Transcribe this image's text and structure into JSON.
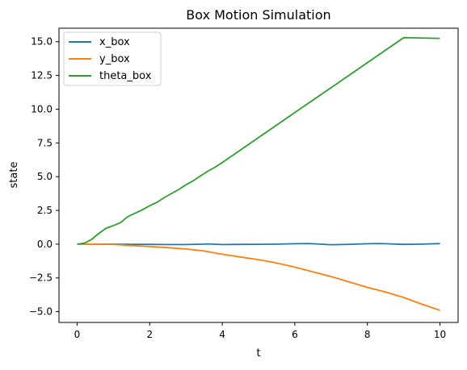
{
  "chart_data": {
    "type": "line",
    "title": "Box Motion Simulation",
    "xlabel": "t",
    "ylabel": "state",
    "xlim": [
      -0.5,
      10.5
    ],
    "ylim": [
      -5.8,
      16.0
    ],
    "xticks": [
      0,
      2,
      4,
      6,
      8,
      10
    ],
    "xtick_labels": [
      "0",
      "2",
      "4",
      "6",
      "8",
      "10"
    ],
    "yticks": [
      -5.0,
      -2.5,
      0.0,
      2.5,
      5.0,
      7.5,
      10.0,
      12.5,
      15.0
    ],
    "ytick_labels": [
      "−5.0",
      "−2.5",
      "0.0",
      "2.5",
      "5.0",
      "7.5",
      "10.0",
      "12.5",
      "15.0"
    ],
    "grid": false,
    "legend_position": "top-left",
    "series": [
      {
        "name": "x_box",
        "color": "#1f77b4",
        "x": [
          0,
          0.5,
          1,
          1.5,
          2,
          2.5,
          3,
          3.5,
          3.6,
          4,
          4.5,
          5,
          5.5,
          6,
          6.3,
          6.5,
          7,
          7.5,
          8,
          8.3,
          8.5,
          9,
          9.5,
          10
        ],
        "y": [
          0.0,
          0.0,
          0.0,
          -0.01,
          -0.02,
          -0.03,
          -0.03,
          0.0,
          0.02,
          -0.03,
          -0.02,
          -0.01,
          0.0,
          0.03,
          0.05,
          0.03,
          -0.04,
          -0.01,
          0.03,
          0.05,
          0.03,
          -0.02,
          0.0,
          0.04
        ]
      },
      {
        "name": "y_box",
        "color": "#ff7f0e",
        "x": [
          0,
          0.5,
          1,
          1.5,
          2,
          2.5,
          3,
          3.5,
          4,
          4.5,
          5,
          5.5,
          6,
          6.5,
          7,
          7.5,
          8,
          8.5,
          9,
          9.5,
          10
        ],
        "y": [
          0.0,
          0.0,
          -0.02,
          -0.1,
          -0.18,
          -0.26,
          -0.36,
          -0.5,
          -0.75,
          -0.95,
          -1.15,
          -1.4,
          -1.7,
          -2.05,
          -2.4,
          -2.8,
          -3.2,
          -3.55,
          -3.95,
          -4.45,
          -4.9
        ]
      },
      {
        "name": "theta_box",
        "color": "#2ca02c",
        "x": [
          0,
          0.2,
          0.4,
          0.6,
          0.8,
          1,
          1.2,
          1.4,
          1.6,
          1.8,
          2,
          2.2,
          2.4,
          2.6,
          2.8,
          3,
          3.2,
          3.4,
          3.6,
          3.8,
          4,
          5,
          6,
          7,
          8,
          9,
          10
        ],
        "y": [
          0.0,
          0.08,
          0.35,
          0.8,
          1.18,
          1.38,
          1.6,
          2.05,
          2.3,
          2.55,
          2.85,
          3.1,
          3.45,
          3.75,
          4.05,
          4.4,
          4.7,
          5.05,
          5.4,
          5.7,
          6.05,
          7.9,
          9.75,
          11.6,
          13.45,
          15.3,
          15.25
        ]
      }
    ]
  }
}
